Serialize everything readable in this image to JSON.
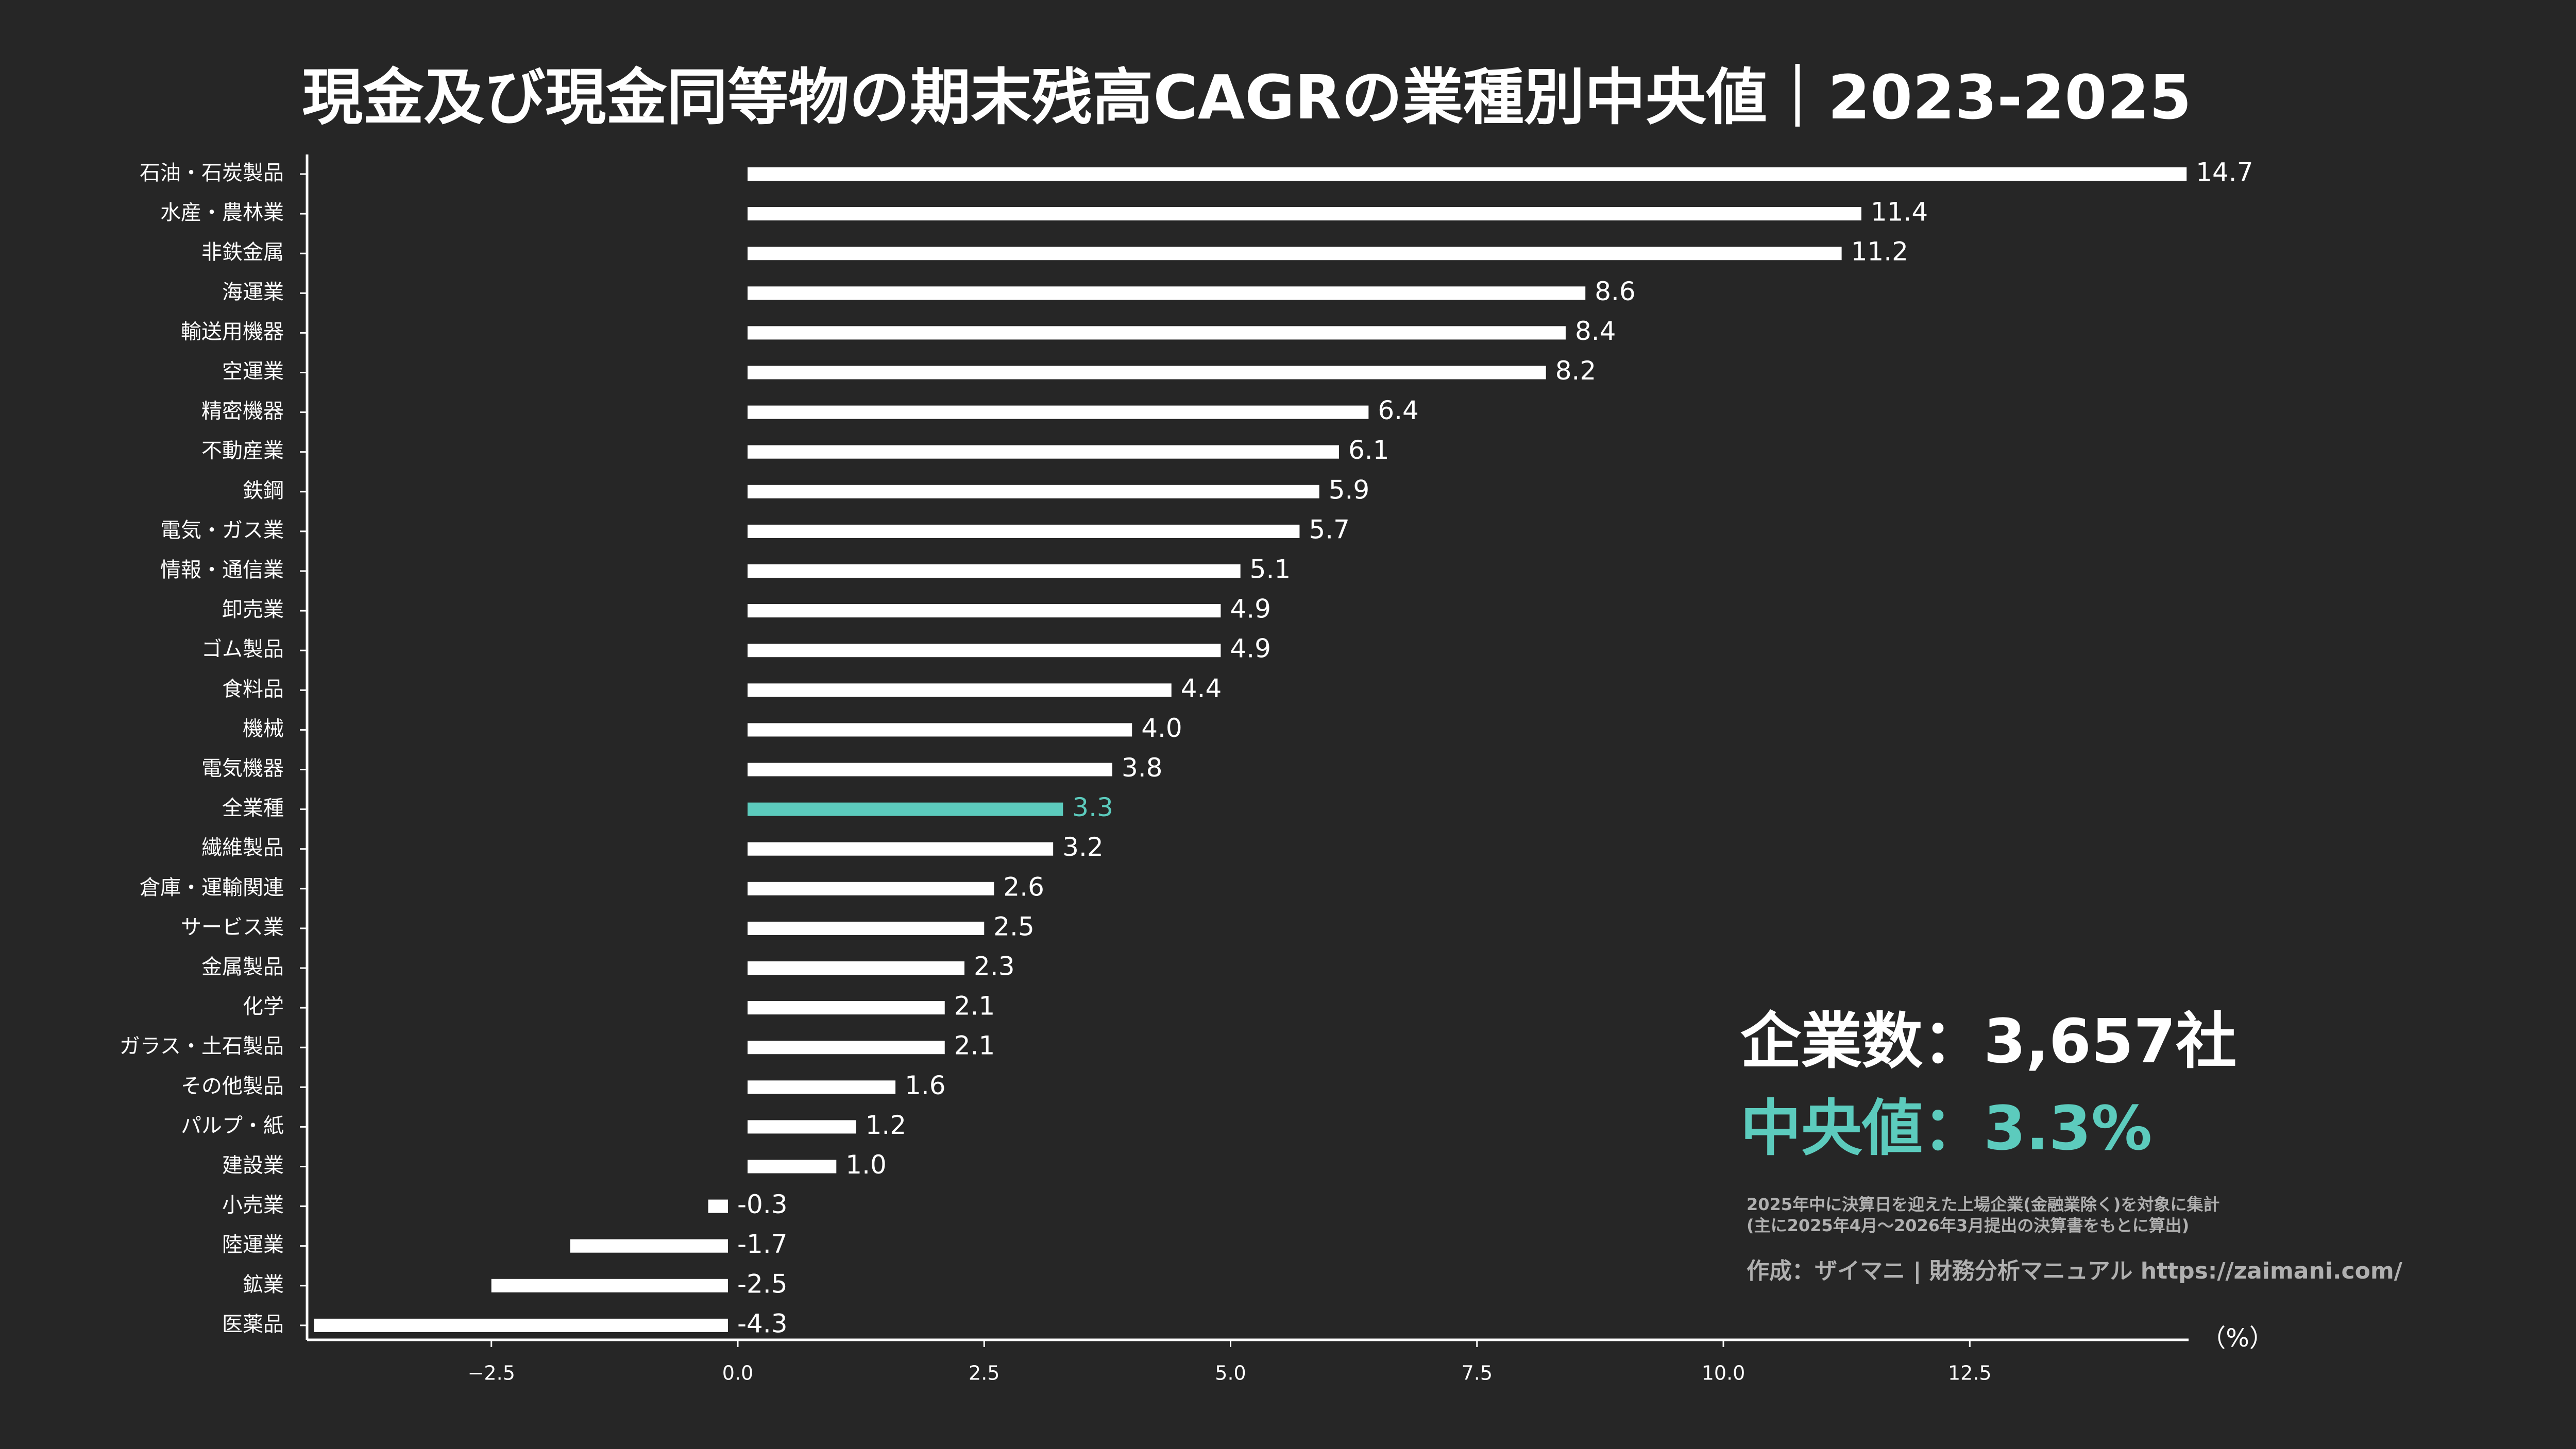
{
  "chart_data": {
    "type": "hbar",
    "title": "現金及び現金同等物の期末残高CAGRの業種別中央値｜2023-2025",
    "categories": [
      "石油・石炭製品",
      "水産・農林業",
      "非鉄金属",
      "海運業",
      "輸送用機器",
      "空運業",
      "精密機器",
      "不動産業",
      "鉄鋼",
      "電気・ガス業",
      "情報・通信業",
      "卸売業",
      "ゴム製品",
      "食料品",
      "機械",
      "電気機器",
      "全業種",
      "繊維製品",
      "倉庫・運輸関連",
      "サービス業",
      "金属製品",
      "化学",
      "ガラス・土石製品",
      "その他製品",
      "パルプ・紙",
      "建設業",
      "小売業",
      "陸運業",
      "鉱業",
      "医薬品"
    ],
    "values": [
      14.7,
      11.4,
      11.2,
      8.6,
      8.4,
      8.2,
      6.4,
      6.1,
      5.9,
      5.7,
      5.1,
      4.9,
      4.9,
      4.4,
      4.0,
      3.8,
      3.3,
      3.2,
      2.6,
      2.5,
      2.3,
      2.1,
      2.1,
      1.6,
      1.2,
      1.0,
      -0.3,
      -1.7,
      -2.5,
      -4.3
    ],
    "value_labels": [
      "14.7",
      "11.4",
      "11.2",
      "8.6",
      "8.4",
      "8.2",
      "6.4",
      "6.1",
      "5.9",
      "5.7",
      "5.1",
      "4.9",
      "4.9",
      "4.4",
      "4.0",
      "3.8",
      "3.3",
      "3.2",
      "2.6",
      "2.5",
      "2.3",
      "2.1",
      "2.1",
      "1.6",
      "1.2",
      "1.0",
      "-0.3",
      "-1.7",
      "-2.5",
      "-4.3"
    ],
    "colors": [
      "#ffffff",
      "#ffffff",
      "#ffffff",
      "#ffffff",
      "#ffffff",
      "#ffffff",
      "#ffffff",
      "#ffffff",
      "#ffffff",
      "#ffffff",
      "#ffffff",
      "#ffffff",
      "#ffffff",
      "#ffffff",
      "#ffffff",
      "#ffffff",
      "#5ccbbd",
      "#ffffff",
      "#ffffff",
      "#ffffff",
      "#ffffff",
      "#ffffff",
      "#ffffff",
      "#ffffff",
      "#ffffff",
      "#ffffff",
      "#ffffff",
      "#ffffff",
      "#ffffff",
      "#ffffff"
    ],
    "xlim": [
      -4.37,
      14.72
    ],
    "xticks": [
      {
        "value": -2.5,
        "label": "−2.5"
      },
      {
        "value": 0,
        "label": "0.0"
      },
      {
        "value": 2.5,
        "label": "2.5"
      },
      {
        "value": 5,
        "label": "5.0"
      },
      {
        "value": 7.5,
        "label": "7.5"
      },
      {
        "value": 10,
        "label": "10.0"
      },
      {
        "value": 12.5,
        "label": "12.5"
      }
    ],
    "x_unit": "（%）",
    "annotations": [
      "企業数：3,657社",
      "中央値：3.3%",
      "2025年中に決算日を迎えた上場企業(金融業除く)を対象に集計",
      "(主に2025年4月～2026年3月提出の決算書をもとに算出)",
      "作成：ザイマニ | 財務分析マニュアル https://zaimani.com/"
    ]
  }
}
